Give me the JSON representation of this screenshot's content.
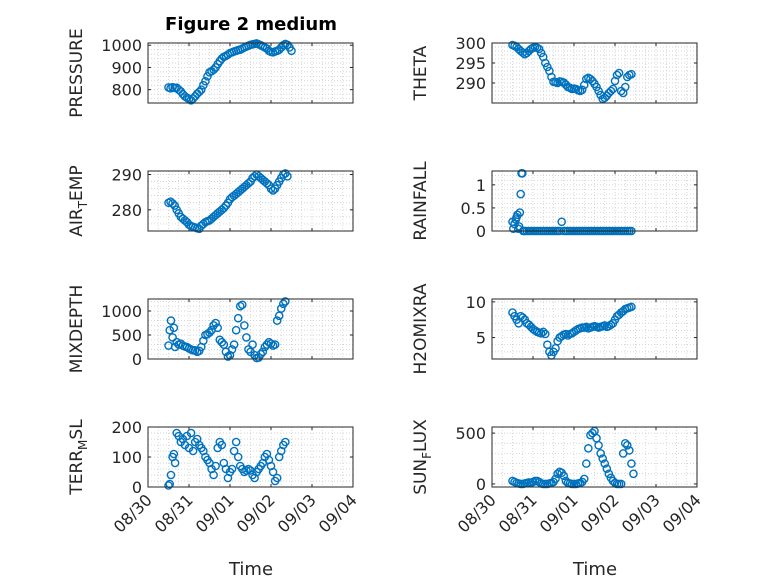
{
  "figure": {
    "title": "Figure 2 medium",
    "xlabel": "Time"
  },
  "date_ticks": [
    "08/30",
    "08/31",
    "09/01",
    "09/02",
    "09/03",
    "09/04"
  ],
  "chart_data": [
    {
      "type": "scatter",
      "id": "pressure",
      "ylabel": "PRESSURE",
      "ylim": [
        740,
        1010
      ],
      "yticks": [
        800,
        900,
        1000
      ],
      "color": "#0072bd",
      "x": [
        0.5,
        0.55,
        0.6,
        0.65,
        0.7,
        0.75,
        0.8,
        0.85,
        0.9,
        0.95,
        1.0,
        1.05,
        1.1,
        1.15,
        1.2,
        1.25,
        1.3,
        1.35,
        1.4,
        1.45,
        1.5,
        1.55,
        1.6,
        1.65,
        1.7,
        1.75,
        1.8,
        1.85,
        1.9,
        1.95,
        2.0,
        2.05,
        2.1,
        2.15,
        2.2,
        2.25,
        2.3,
        2.35,
        2.4,
        2.45,
        2.5,
        2.55,
        2.6,
        2.65,
        2.7,
        2.75,
        2.8,
        2.85,
        2.9,
        2.95,
        3.0,
        3.05,
        3.1,
        3.15,
        3.2,
        3.25,
        3.3,
        3.35,
        3.4,
        3.45,
        3.5
      ],
      "y": [
        810,
        806,
        811,
        808,
        809,
        800,
        792,
        780,
        770,
        764,
        758,
        752,
        760,
        770,
        782,
        790,
        800,
        820,
        838,
        860,
        878,
        883,
        890,
        900,
        915,
        928,
        940,
        948,
        952,
        958,
        965,
        968,
        972,
        975,
        978,
        980,
        985,
        990,
        994,
        998,
        1002,
        1004,
        1006,
        1008,
        1004,
        1000,
        995,
        990,
        985,
        975,
        970,
        968,
        972,
        975,
        980,
        990,
        1000,
        1006,
        1002,
        990,
        975
      ]
    },
    {
      "type": "scatter",
      "id": "theta",
      "ylabel": "THETA",
      "ylim": [
        285,
        300
      ],
      "yticks": [
        290,
        295,
        300
      ],
      "color": "#0072bd",
      "x": [
        0.5,
        0.55,
        0.6,
        0.65,
        0.7,
        0.75,
        0.8,
        0.85,
        0.9,
        0.95,
        1.0,
        1.05,
        1.1,
        1.15,
        1.2,
        1.25,
        1.3,
        1.35,
        1.4,
        1.45,
        1.5,
        1.55,
        1.6,
        1.65,
        1.7,
        1.75,
        1.8,
        1.85,
        1.9,
        1.95,
        2.0,
        2.05,
        2.1,
        2.15,
        2.2,
        2.25,
        2.3,
        2.35,
        2.4,
        2.45,
        2.5,
        2.55,
        2.6,
        2.65,
        2.7,
        2.75,
        2.8,
        2.85,
        2.9,
        2.95,
        3.0,
        3.05,
        3.1,
        3.15,
        3.2,
        3.25,
        3.3,
        3.35,
        3.4
      ],
      "y": [
        299.5,
        299.3,
        299,
        298.5,
        298,
        297.6,
        297.2,
        297.5,
        298,
        298.5,
        298.8,
        299,
        298.8,
        298.5,
        297.5,
        296.5,
        295,
        294,
        293,
        291.5,
        290.3,
        290.2,
        290,
        290.4,
        290.3,
        290.1,
        289.6,
        289,
        288.8,
        288.5,
        288.6,
        288.5,
        288.2,
        288,
        288.3,
        289.5,
        291,
        291.3,
        291,
        290.5,
        289.8,
        289,
        288,
        287,
        286,
        286.3,
        286.8,
        287.5,
        288,
        288.5,
        290.5,
        292,
        292.5,
        288,
        287.5,
        289,
        291.5,
        292,
        292.2
      ]
    },
    {
      "type": "scatter",
      "id": "air-temp",
      "ylabel": "AIR",
      "ylabel_sub": "T",
      "ylabel_tail": "EMP",
      "ylim": [
        274,
        291
      ],
      "yticks": [
        280,
        290
      ],
      "color": "#0072bd",
      "x": [
        0.5,
        0.55,
        0.6,
        0.65,
        0.7,
        0.75,
        0.8,
        0.85,
        0.9,
        0.95,
        1.0,
        1.05,
        1.1,
        1.15,
        1.2,
        1.25,
        1.3,
        1.35,
        1.4,
        1.45,
        1.5,
        1.55,
        1.6,
        1.65,
        1.7,
        1.75,
        1.8,
        1.85,
        1.9,
        1.95,
        2.0,
        2.05,
        2.1,
        2.15,
        2.2,
        2.25,
        2.3,
        2.35,
        2.4,
        2.45,
        2.5,
        2.55,
        2.6,
        2.65,
        2.7,
        2.75,
        2.8,
        2.85,
        2.9,
        2.95,
        3.0,
        3.05,
        3.1,
        3.15,
        3.2,
        3.25,
        3.3,
        3.35,
        3.4
      ],
      "y": [
        282,
        282.3,
        281.8,
        281.2,
        280,
        279,
        278,
        277.5,
        277,
        276.5,
        275.8,
        275.4,
        275.2,
        275,
        274.8,
        274.6,
        275.5,
        276,
        276.5,
        276.8,
        277,
        277.5,
        278,
        278.5,
        279,
        279.5,
        280,
        280.5,
        281.2,
        282,
        283,
        283.6,
        284,
        284.5,
        285,
        285.5,
        286,
        286.5,
        287,
        287.5,
        288,
        289,
        289.5,
        290,
        289.5,
        289,
        288.5,
        288,
        287.5,
        287,
        286,
        285.5,
        286,
        287,
        288,
        289,
        290,
        290.3,
        289.5
      ]
    },
    {
      "type": "scatter",
      "id": "rainfall",
      "ylabel": "RAINFALL",
      "ylim": [
        0,
        1.3
      ],
      "yticks": [
        0,
        0.5,
        1
      ],
      "ytick_labels": [
        "0",
        "0.5",
        "1"
      ],
      "color": "#0072bd",
      "x": [
        0.5,
        0.52,
        0.55,
        0.58,
        0.6,
        0.62,
        0.64,
        0.66,
        0.68,
        0.7,
        0.72,
        0.74,
        0.76,
        0.78,
        0.8,
        0.85,
        0.9,
        0.95,
        1.0,
        1.05,
        1.1,
        1.15,
        1.2,
        1.25,
        1.3,
        1.35,
        1.4,
        1.45,
        1.5,
        1.55,
        1.6,
        1.65,
        1.7,
        1.75,
        1.8,
        1.85,
        1.9,
        1.95,
        2.0,
        2.05,
        2.1,
        2.15,
        2.2,
        2.25,
        2.3,
        2.35,
        2.4,
        2.45,
        2.5,
        2.55,
        2.6,
        2.65,
        2.7,
        2.75,
        2.8,
        2.85,
        2.9,
        2.95,
        3.0,
        3.05,
        3.1,
        3.15,
        3.2,
        3.25,
        3.3,
        3.35,
        3.4
      ],
      "y": [
        0.2,
        0.05,
        0.15,
        0.25,
        0.3,
        0.35,
        0.05,
        0.1,
        0.4,
        0.8,
        1.25,
        1.25,
        0,
        0,
        0,
        0,
        0,
        0,
        0,
        0,
        0,
        0,
        0,
        0,
        0,
        0,
        0,
        0,
        0,
        0,
        0,
        0,
        0.2,
        0,
        0,
        0,
        0,
        0,
        0,
        0,
        0,
        0,
        0,
        0,
        0,
        0,
        0,
        0,
        0,
        0,
        0,
        0,
        0,
        0,
        0,
        0,
        0,
        0,
        0,
        0,
        0,
        0,
        0,
        0,
        0,
        0,
        0
      ]
    },
    {
      "type": "scatter",
      "id": "mixdepth",
      "ylabel": "MIXDEPTH",
      "ylim": [
        0,
        1250
      ],
      "yticks": [
        0,
        500,
        1000
      ],
      "color": "#0072bd",
      "x": [
        0.5,
        0.53,
        0.56,
        0.6,
        0.63,
        0.66,
        0.7,
        0.75,
        0.8,
        0.85,
        0.9,
        0.95,
        1.0,
        1.05,
        1.1,
        1.15,
        1.2,
        1.25,
        1.3,
        1.35,
        1.4,
        1.45,
        1.5,
        1.55,
        1.6,
        1.65,
        1.7,
        1.75,
        1.8,
        1.85,
        1.9,
        1.95,
        2.0,
        2.05,
        2.1,
        2.15,
        2.2,
        2.25,
        2.3,
        2.35,
        2.4,
        2.45,
        2.5,
        2.55,
        2.6,
        2.65,
        2.7,
        2.75,
        2.8,
        2.85,
        2.9,
        2.95,
        3.0,
        3.05,
        3.1,
        3.15,
        3.2,
        3.25,
        3.3,
        3.35
      ],
      "y": [
        280,
        600,
        800,
        450,
        650,
        250,
        350,
        300,
        320,
        280,
        260,
        250,
        220,
        200,
        180,
        180,
        150,
        170,
        250,
        380,
        500,
        520,
        550,
        600,
        700,
        750,
        650,
        400,
        350,
        300,
        150,
        50,
        80,
        200,
        300,
        600,
        850,
        1100,
        1130,
        700,
        450,
        200,
        150,
        300,
        80,
        20,
        30,
        100,
        150,
        250,
        300,
        350,
        320,
        280,
        300,
        800,
        900,
        1050,
        1150,
        1200
      ]
    },
    {
      "type": "scatter",
      "id": "h2omixra",
      "ylabel": "H2OMIXRA",
      "ylim": [
        2,
        10.4
      ],
      "yticks": [
        5,
        10
      ],
      "color": "#0072bd",
      "x": [
        0.5,
        0.55,
        0.6,
        0.65,
        0.7,
        0.75,
        0.8,
        0.85,
        0.9,
        0.95,
        1.0,
        1.05,
        1.1,
        1.15,
        1.2,
        1.25,
        1.3,
        1.35,
        1.4,
        1.45,
        1.5,
        1.55,
        1.6,
        1.65,
        1.7,
        1.75,
        1.8,
        1.85,
        1.9,
        1.95,
        2.0,
        2.05,
        2.1,
        2.15,
        2.2,
        2.25,
        2.3,
        2.35,
        2.4,
        2.45,
        2.5,
        2.55,
        2.6,
        2.65,
        2.7,
        2.75,
        2.8,
        2.85,
        2.9,
        2.95,
        3.0,
        3.05,
        3.1,
        3.15,
        3.2,
        3.25,
        3.3,
        3.35,
        3.4
      ],
      "y": [
        8.5,
        8,
        7.5,
        7,
        8,
        7.8,
        7.5,
        7,
        6.8,
        6.5,
        6.2,
        6,
        5.8,
        5.7,
        5.6,
        5.8,
        5.5,
        4,
        3,
        2.5,
        3,
        3.5,
        4.5,
        5,
        5.2,
        5.4,
        5.5,
        5.3,
        5.5,
        5.6,
        5.8,
        6,
        6.2,
        6.3,
        6.4,
        6.4,
        6.5,
        6.3,
        6.4,
        6.5,
        6.6,
        6.5,
        6.4,
        6.5,
        6.6,
        6.7,
        6.5,
        6.6,
        6.8,
        7,
        7.5,
        8,
        8.2,
        8.5,
        8.7,
        9,
        9.1,
        9.2,
        9.3
      ]
    },
    {
      "type": "scatter",
      "id": "terr-msl",
      "ylabel": "TERR",
      "ylabel_sub": "M",
      "ylabel_tail": "SL",
      "ylim": [
        0,
        200
      ],
      "yticks": [
        0,
        100,
        200
      ],
      "color": "#0072bd",
      "x": [
        0.5,
        0.53,
        0.56,
        0.6,
        0.63,
        0.66,
        0.7,
        0.75,
        0.8,
        0.85,
        0.9,
        0.95,
        1.0,
        1.05,
        1.1,
        1.15,
        1.2,
        1.25,
        1.3,
        1.35,
        1.4,
        1.45,
        1.5,
        1.55,
        1.6,
        1.65,
        1.7,
        1.75,
        1.8,
        1.85,
        1.9,
        1.95,
        2.0,
        2.05,
        2.1,
        2.15,
        2.2,
        2.25,
        2.3,
        2.35,
        2.4,
        2.45,
        2.5,
        2.55,
        2.6,
        2.65,
        2.7,
        2.75,
        2.8,
        2.85,
        2.9,
        2.95,
        3.0,
        3.05,
        3.1,
        3.15,
        3.2,
        3.25,
        3.3,
        3.35
      ],
      "y": [
        5,
        10,
        40,
        100,
        110,
        80,
        180,
        170,
        150,
        160,
        140,
        170,
        130,
        180,
        120,
        150,
        160,
        140,
        130,
        120,
        100,
        90,
        80,
        60,
        40,
        70,
        130,
        150,
        140,
        80,
        60,
        30,
        50,
        60,
        120,
        150,
        100,
        70,
        60,
        50,
        55,
        60,
        55,
        40,
        30,
        50,
        60,
        70,
        80,
        100,
        110,
        90,
        70,
        50,
        20,
        30,
        100,
        120,
        140,
        150
      ]
    },
    {
      "type": "scatter",
      "id": "sun-flux",
      "ylabel": "SUN",
      "ylabel_sub": "F",
      "ylabel_tail": "LUX",
      "ylim": [
        -30,
        560
      ],
      "yticks": [
        0,
        500
      ],
      "color": "#0072bd",
      "x": [
        0.5,
        0.55,
        0.6,
        0.65,
        0.7,
        0.75,
        0.8,
        0.85,
        0.9,
        0.95,
        1.0,
        1.05,
        1.1,
        1.15,
        1.2,
        1.25,
        1.3,
        1.35,
        1.4,
        1.45,
        1.5,
        1.55,
        1.6,
        1.65,
        1.7,
        1.75,
        1.8,
        1.85,
        1.9,
        1.95,
        2.0,
        2.05,
        2.1,
        2.15,
        2.2,
        2.25,
        2.3,
        2.35,
        2.4,
        2.45,
        2.5,
        2.55,
        2.6,
        2.65,
        2.7,
        2.75,
        2.8,
        2.85,
        2.9,
        2.95,
        3.0,
        3.05,
        3.1,
        3.15,
        3.2,
        3.25,
        3.3,
        3.35,
        3.4,
        3.45
      ],
      "y": [
        30,
        20,
        10,
        5,
        0,
        0,
        5,
        10,
        15,
        10,
        20,
        30,
        30,
        20,
        5,
        0,
        0,
        0,
        5,
        10,
        20,
        50,
        100,
        120,
        110,
        80,
        30,
        10,
        5,
        0,
        0,
        0,
        5,
        10,
        20,
        50,
        200,
        350,
        480,
        500,
        520,
        450,
        380,
        300,
        250,
        200,
        150,
        100,
        60,
        30,
        10,
        0,
        0,
        0,
        300,
        400,
        380,
        330,
        200,
        100
      ]
    }
  ]
}
